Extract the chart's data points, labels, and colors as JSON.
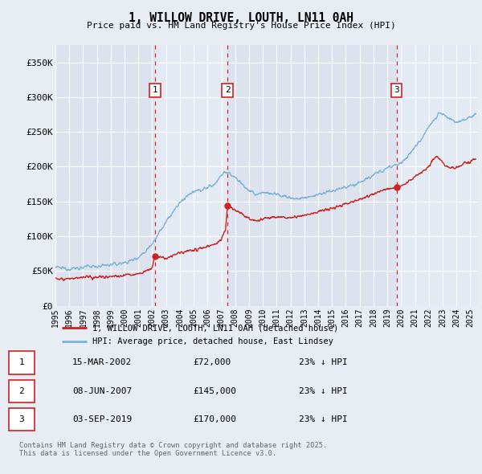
{
  "title": "1, WILLOW DRIVE, LOUTH, LN11 0AH",
  "subtitle": "Price paid vs. HM Land Registry's House Price Index (HPI)",
  "ylabel_ticks": [
    "£0",
    "£50K",
    "£100K",
    "£150K",
    "£200K",
    "£250K",
    "£300K",
    "£350K"
  ],
  "ytick_values": [
    0,
    50000,
    100000,
    150000,
    200000,
    250000,
    300000,
    350000
  ],
  "ylim": [
    0,
    375000
  ],
  "xlim_start": 1995.0,
  "xlim_end": 2025.5,
  "sale1_date": 2002.21,
  "sale1_label": "1",
  "sale1_price": 72000,
  "sale1_text": "15-MAR-2002",
  "sale1_pct": "23% ↓ HPI",
  "sale2_date": 2007.44,
  "sale2_label": "2",
  "sale2_price": 145000,
  "sale2_text": "08-JUN-2007",
  "sale2_pct": "23% ↓ HPI",
  "sale3_date": 2019.67,
  "sale3_label": "3",
  "sale3_price": 170000,
  "sale3_text": "03-SEP-2019",
  "sale3_pct": "23% ↓ HPI",
  "hpi_color": "#7ab3d4",
  "price_color": "#cc2222",
  "vline_color": "#cc2222",
  "bg_color": "#e8ecf3",
  "plot_bg": "#dce3ef",
  "plot_bg_light": "#e4eaf4",
  "grid_color": "#ffffff",
  "legend_label_price": "1, WILLOW DRIVE, LOUTH, LN11 0AH (detached house)",
  "legend_label_hpi": "HPI: Average price, detached house, East Lindsey",
  "footnote": "Contains HM Land Registry data © Crown copyright and database right 2025.\nThis data is licensed under the Open Government Licence v3.0.",
  "xtick_years": [
    1995,
    1996,
    1997,
    1998,
    1999,
    2000,
    2001,
    2002,
    2003,
    2004,
    2005,
    2006,
    2007,
    2008,
    2009,
    2010,
    2011,
    2012,
    2013,
    2014,
    2015,
    2016,
    2017,
    2018,
    2019,
    2020,
    2021,
    2022,
    2023,
    2024,
    2025
  ]
}
